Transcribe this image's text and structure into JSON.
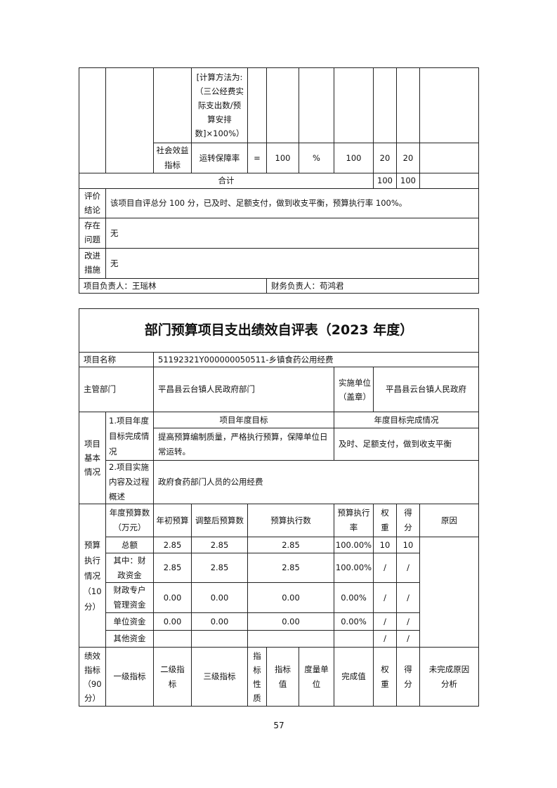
{
  "top": {
    "formula": "[计算方法为:（三公经费实际支出数/预算安排数]×100%）",
    "social": {
      "level2": "社会效益指标",
      "level3": "运转保障率",
      "nature": "=",
      "value": "100",
      "unit": "%",
      "done": "100",
      "weight": "20",
      "score": "20"
    },
    "total": {
      "label": "合计",
      "weight": "100",
      "score": "100"
    },
    "conclusion": {
      "label": "评价结论",
      "text": "该项目自评总分 100 分，已及时、足额支付，做到收支平衡，预算执行率 100%。"
    },
    "problems": {
      "label": "存在问题",
      "text": "无"
    },
    "improve": {
      "label": "改进措施",
      "text": "无"
    },
    "leader": "项目负责人：王瑶林",
    "finance": "财务负责人：苟鸿君"
  },
  "form": {
    "title": "部门预算项目支出绩效自评表（2023 年度）",
    "name_label": "项目名称",
    "name_value": "51192321Y000000050511-乡镇食药公用经费",
    "dept_label": "主管部门",
    "dept_value": "平昌县云台镇人民政府部门",
    "impl_label": "实施单位（盖章）",
    "impl_value": "平昌县云台镇人民政府",
    "basic_label": "项目基本情况",
    "goal_label": "1.项目年度目标完成情况",
    "goal_head": "项目年度目标",
    "done_head": "年度目标完成情况",
    "goal_text": "提高预算编制质量，严格执行预算，保障单位日常运转。",
    "done_text": "及时、足额支付，做到收支平衡",
    "content_label": "2.项目实施内容及过程概述",
    "content_text": "政府食药部门人员的公用经费",
    "budget_label": "预算执行情况（10分）",
    "budget_headers": [
      "年度预算数（万元）",
      "年初预算",
      "调整后预算数",
      "预算执行数",
      "预算执行率",
      "权重",
      "得分",
      "原因"
    ],
    "budget_rows": [
      [
        "总额",
        "2.85",
        "2.85",
        "2.85",
        "100.00%",
        "10",
        "10"
      ],
      [
        "其中：财政资金",
        "2.85",
        "2.85",
        "2.85",
        "100.00%",
        "/",
        "/"
      ],
      [
        "财政专户管理资金",
        "0.00",
        "0.00",
        "0.00",
        "0.00%",
        "/",
        "/"
      ],
      [
        "单位资金",
        "0.00",
        "0.00",
        "0.00",
        "0.00%",
        "/",
        "/"
      ],
      [
        "其他资金",
        "",
        "",
        "",
        "",
        "/",
        "/"
      ]
    ],
    "perf_label": "绩效指标（90分）",
    "perf_headers": [
      "一级指标",
      "二级指标",
      "三级指标",
      "指标性质",
      "指标值",
      "度量单位",
      "完成值",
      "权重",
      "得分",
      "未完成原因分析"
    ]
  },
  "page_number": "57"
}
